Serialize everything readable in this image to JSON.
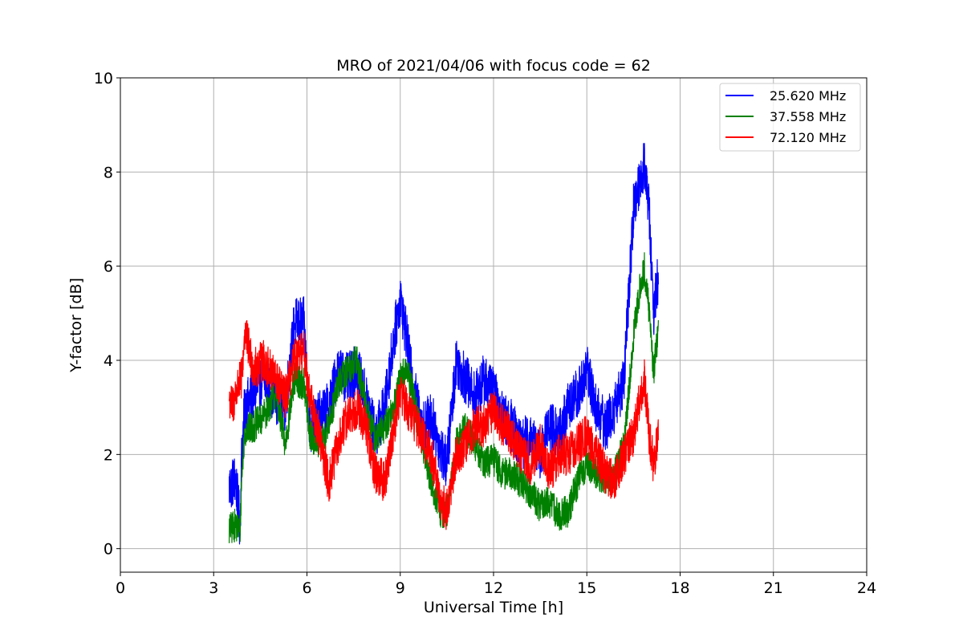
{
  "chart_data": {
    "type": "line",
    "title": "MRO of 2021/04/06 with focus code = 62",
    "xlabel": "Universal Time [h]",
    "ylabel": "Y-factor [dB]",
    "xlim": [
      0,
      24
    ],
    "ylim": [
      -0.5,
      10
    ],
    "xticks": [
      0,
      3,
      6,
      9,
      12,
      15,
      18,
      21,
      24
    ],
    "xtick_labels": [
      "0",
      "3",
      "6",
      "9",
      "12",
      "15",
      "18",
      "21",
      "24"
    ],
    "yticks": [
      0,
      2,
      4,
      6,
      8,
      10
    ],
    "ytick_labels": [
      "0",
      "2",
      "4",
      "6",
      "8",
      "10"
    ],
    "grid": true,
    "legend_position": "top-right",
    "series": [
      {
        "name": "25.620 MHz",
        "color": "#0000ff",
        "noise_amplitude": 0.55,
        "x": [
          3.5,
          3.7,
          3.85,
          3.9,
          4.0,
          4.3,
          4.6,
          5.0,
          5.3,
          5.6,
          5.9,
          6.1,
          6.4,
          6.7,
          7.0,
          7.3,
          7.6,
          7.9,
          8.2,
          8.5,
          8.8,
          9.0,
          9.2,
          9.4,
          9.7,
          10.0,
          10.3,
          10.5,
          10.8,
          11.1,
          11.4,
          11.7,
          12.0,
          12.3,
          12.6,
          12.9,
          13.2,
          13.5,
          13.8,
          14.1,
          14.4,
          14.7,
          15.0,
          15.3,
          15.6,
          15.9,
          16.2,
          16.5,
          16.7,
          16.85,
          17.0,
          17.15,
          17.3
        ],
        "y": [
          1.3,
          1.5,
          0.5,
          2.0,
          3.0,
          3.3,
          3.6,
          3.2,
          3.0,
          4.8,
          4.8,
          2.5,
          2.8,
          3.0,
          3.8,
          3.6,
          3.8,
          3.2,
          2.4,
          3.0,
          4.5,
          5.3,
          4.5,
          3.5,
          2.6,
          2.8,
          2.1,
          1.8,
          4.0,
          3.6,
          3.2,
          3.6,
          3.3,
          2.8,
          2.6,
          2.2,
          2.4,
          2.0,
          2.6,
          2.4,
          3.0,
          3.3,
          3.8,
          3.0,
          2.6,
          3.0,
          3.6,
          7.2,
          7.8,
          8.2,
          7.2,
          5.0,
          5.8
        ]
      },
      {
        "name": "37.558 MHz",
        "color": "#008000",
        "noise_amplitude": 0.35,
        "x": [
          3.5,
          3.7,
          3.85,
          3.9,
          4.0,
          4.3,
          4.6,
          5.0,
          5.3,
          5.6,
          5.9,
          6.1,
          6.4,
          6.7,
          7.0,
          7.3,
          7.6,
          7.9,
          8.2,
          8.5,
          8.8,
          9.0,
          9.2,
          9.4,
          9.7,
          10.0,
          10.3,
          10.5,
          10.8,
          11.1,
          11.4,
          11.7,
          12.0,
          12.3,
          12.6,
          12.9,
          13.2,
          13.5,
          13.8,
          14.1,
          14.4,
          14.7,
          15.0,
          15.3,
          15.6,
          15.9,
          16.2,
          16.5,
          16.7,
          16.85,
          17.0,
          17.15,
          17.3
        ],
        "y": [
          0.4,
          0.5,
          0.4,
          1.5,
          2.5,
          2.6,
          2.8,
          3.3,
          2.2,
          3.6,
          3.5,
          2.4,
          2.2,
          2.6,
          3.5,
          3.8,
          4.0,
          3.0,
          2.3,
          2.6,
          3.0,
          3.6,
          3.8,
          3.3,
          2.3,
          1.4,
          0.8,
          0.7,
          2.2,
          2.6,
          2.2,
          1.8,
          1.9,
          1.6,
          1.6,
          1.4,
          1.2,
          0.9,
          1.0,
          0.7,
          0.8,
          1.4,
          1.8,
          1.6,
          1.5,
          1.6,
          2.2,
          4.5,
          5.5,
          6.0,
          5.0,
          3.8,
          4.6
        ]
      },
      {
        "name": "72.120 MHz",
        "color": "#ff0000",
        "noise_amplitude": 0.45,
        "x": [
          3.5,
          3.6,
          3.75,
          3.9,
          4.0,
          4.3,
          4.6,
          5.0,
          5.3,
          5.6,
          5.9,
          6.1,
          6.4,
          6.7,
          7.0,
          7.3,
          7.6,
          7.9,
          8.2,
          8.5,
          8.8,
          9.0,
          9.2,
          9.4,
          9.7,
          10.0,
          10.3,
          10.5,
          10.8,
          11.1,
          11.4,
          11.7,
          12.0,
          12.3,
          12.6,
          12.9,
          13.2,
          13.5,
          13.8,
          14.1,
          14.4,
          14.7,
          15.0,
          15.3,
          15.6,
          15.9,
          16.2,
          16.5,
          16.7,
          16.85,
          17.0,
          17.15,
          17.3
        ],
        "y": [
          3.2,
          3.0,
          3.4,
          3.6,
          4.6,
          3.8,
          4.0,
          3.6,
          3.2,
          4.0,
          4.2,
          3.2,
          2.4,
          1.4,
          2.2,
          2.8,
          3.0,
          2.6,
          1.6,
          1.4,
          2.6,
          3.4,
          3.0,
          2.8,
          2.4,
          2.0,
          1.0,
          0.8,
          2.0,
          2.2,
          2.6,
          2.6,
          3.0,
          2.6,
          2.4,
          2.0,
          1.8,
          2.2,
          1.6,
          2.0,
          2.0,
          2.2,
          2.4,
          2.0,
          1.6,
          1.4,
          2.0,
          2.4,
          3.2,
          3.6,
          2.4,
          1.8,
          2.4
        ]
      }
    ]
  }
}
